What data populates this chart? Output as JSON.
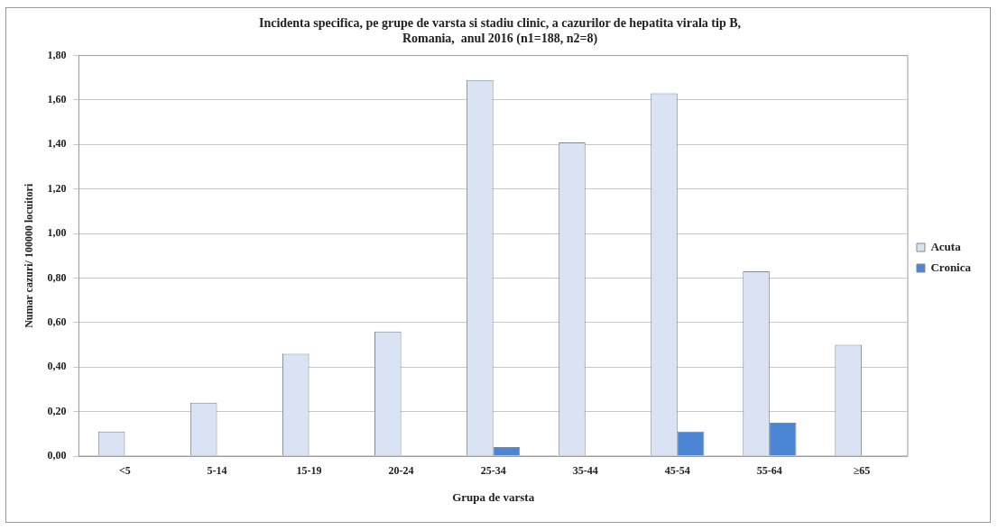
{
  "chart_data": {
    "type": "bar",
    "title": "Incidenta specifica, pe grupe de varsta si stadiu clinic, a cazurilor de hepatita virala tip B,\nRomania,  anul 2016 (n1=188, n2=8)",
    "xlabel": "Grupa de varsta",
    "ylabel": "Numar cazuri/ 100000 locuitori",
    "categories": [
      "<5",
      "5-14",
      "15-19",
      "20-24",
      "25-34",
      "35-44",
      "45-54",
      "55-64",
      "≥65"
    ],
    "series": [
      {
        "name": "Acuta",
        "color": "#dae3f3",
        "values": [
          0.11,
          0.24,
          0.46,
          0.56,
          1.69,
          1.41,
          1.63,
          0.83,
          0.5
        ]
      },
      {
        "name": "Cronica",
        "color": "#4a86d4",
        "values": [
          0,
          0,
          0,
          0,
          0.04,
          0,
          0.11,
          0.15,
          0
        ]
      }
    ],
    "ylim": [
      0,
      1.8
    ],
    "yticks": [
      {
        "value": 0,
        "label": "0,00"
      },
      {
        "value": 0.2,
        "label": "0,20"
      },
      {
        "value": 0.4,
        "label": "0,40"
      },
      {
        "value": 0.6,
        "label": "0,60"
      },
      {
        "value": 0.8,
        "label": "0,80"
      },
      {
        "value": 1,
        "label": "1,00"
      },
      {
        "value": 1.2,
        "label": "1,20"
      },
      {
        "value": 1.4,
        "label": "1,40"
      },
      {
        "value": 1.6,
        "label": "1,60"
      },
      {
        "value": 1.8,
        "label": "1,80"
      }
    ],
    "grid": "y",
    "legend": "right"
  }
}
